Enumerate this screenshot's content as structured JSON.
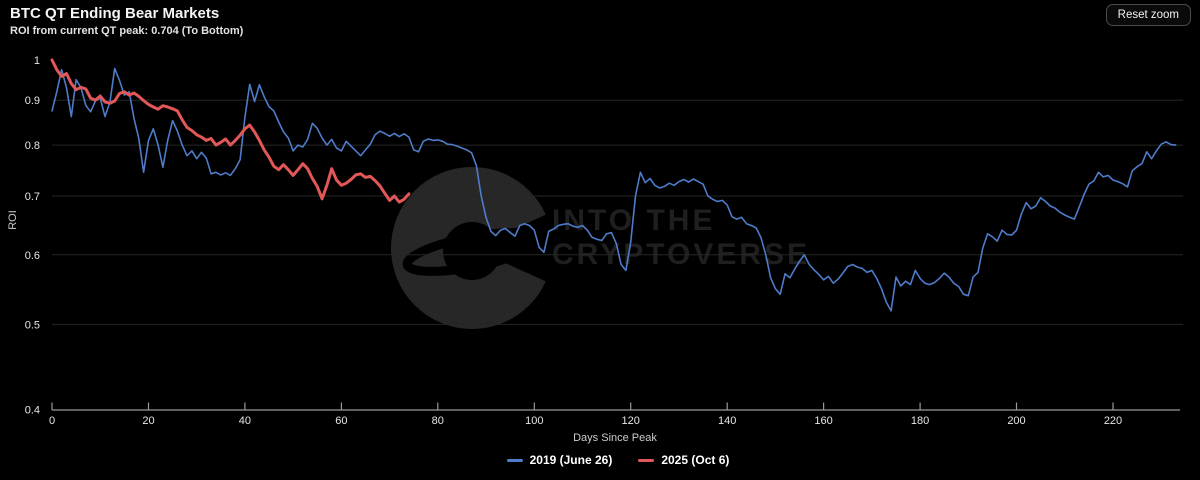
{
  "toolbar": {
    "reset_zoom_label": "Reset zoom"
  },
  "watermark": {
    "line1": "INTO THE",
    "line2": "CRYPTOVERSE"
  },
  "colors": {
    "background": "#000000",
    "grid": "#262626",
    "axis": "#999999",
    "tick_text": "#e6e6e6",
    "blue_series": "#4e7cc9",
    "red_series": "#e25757",
    "watermark_gray": "#272727"
  },
  "chart_data": {
    "type": "line",
    "title": "BTC QT Ending Bear Markets",
    "subtitle": "ROI from current QT peak: 0.704 (To Bottom)",
    "xlabel": "Days Since Peak",
    "ylabel": "ROI",
    "x_ticks": [
      0,
      20,
      40,
      60,
      80,
      100,
      120,
      140,
      160,
      180,
      200,
      220
    ],
    "y_tick_labels": [
      "1",
      "0.9",
      "0.8",
      "0.7",
      "0.6",
      "0.5",
      "0.4"
    ],
    "y_scale": "log",
    "ylim": [
      0.4,
      1.0
    ],
    "xlim": [
      0,
      234
    ],
    "grid": true,
    "legend_position": "bottom",
    "series": [
      {
        "name": "2019 (June 26)",
        "color": "#4e7cc9",
        "width": 1.6,
        "x_start": 0,
        "x_step": 1,
        "values": [
          0.875,
          0.92,
          0.975,
          0.93,
          0.862,
          0.95,
          0.93,
          0.888,
          0.873,
          0.898,
          0.905,
          0.862,
          0.895,
          0.978,
          0.948,
          0.912,
          0.92,
          0.858,
          0.814,
          0.745,
          0.81,
          0.835,
          0.8,
          0.755,
          0.81,
          0.853,
          0.83,
          0.8,
          0.778,
          0.788,
          0.772,
          0.785,
          0.773,
          0.742,
          0.745,
          0.74,
          0.744,
          0.739,
          0.752,
          0.77,
          0.86,
          0.938,
          0.897,
          0.937,
          0.908,
          0.885,
          0.875,
          0.85,
          0.828,
          0.815,
          0.788,
          0.8,
          0.796,
          0.812,
          0.847,
          0.836,
          0.815,
          0.8,
          0.812,
          0.794,
          0.788,
          0.808,
          0.798,
          0.788,
          0.778,
          0.79,
          0.802,
          0.822,
          0.83,
          0.825,
          0.819,
          0.825,
          0.818,
          0.824,
          0.817,
          0.79,
          0.786,
          0.808,
          0.813,
          0.81,
          0.811,
          0.808,
          0.802,
          0.801,
          0.798,
          0.794,
          0.79,
          0.784,
          0.758,
          0.7,
          0.662,
          0.638,
          0.631,
          0.64,
          0.643,
          0.636,
          0.63,
          0.648,
          0.651,
          0.648,
          0.64,
          0.612,
          0.604,
          0.638,
          0.642,
          0.648,
          0.65,
          0.651,
          0.647,
          0.645,
          0.648,
          0.64,
          0.628,
          0.625,
          0.623,
          0.634,
          0.636,
          0.618,
          0.585,
          0.576,
          0.62,
          0.7,
          0.745,
          0.725,
          0.733,
          0.72,
          0.715,
          0.718,
          0.724,
          0.72,
          0.727,
          0.731,
          0.726,
          0.732,
          0.727,
          0.722,
          0.7,
          0.694,
          0.69,
          0.692,
          0.684,
          0.663,
          0.659,
          0.662,
          0.651,
          0.648,
          0.644,
          0.628,
          0.6,
          0.565,
          0.549,
          0.541,
          0.571,
          0.565,
          0.578,
          0.59,
          0.6,
          0.585,
          0.577,
          0.57,
          0.562,
          0.567,
          0.557,
          0.563,
          0.572,
          0.582,
          0.585,
          0.581,
          0.579,
          0.573,
          0.576,
          0.564,
          0.549,
          0.53,
          0.518,
          0.566,
          0.553,
          0.56,
          0.555,
          0.576,
          0.564,
          0.557,
          0.555,
          0.558,
          0.564,
          0.572,
          0.566,
          0.557,
          0.552,
          0.541,
          0.539,
          0.566,
          0.573,
          0.611,
          0.634,
          0.629,
          0.622,
          0.64,
          0.633,
          0.632,
          0.64,
          0.668,
          0.688,
          0.677,
          0.682,
          0.697,
          0.69,
          0.682,
          0.678,
          0.671,
          0.666,
          0.662,
          0.659,
          0.68,
          0.703,
          0.722,
          0.728,
          0.745,
          0.736,
          0.739,
          0.73,
          0.727,
          0.723,
          0.717,
          0.748,
          0.756,
          0.762,
          0.786,
          0.772,
          0.788,
          0.802,
          0.807,
          0.801,
          0.8
        ]
      },
      {
        "name": "2025 (Oct 6)",
        "color": "#e25757",
        "width": 3,
        "x_start": 0,
        "x_step": 1,
        "values": [
          1.0,
          0.975,
          0.958,
          0.965,
          0.94,
          0.925,
          0.931,
          0.927,
          0.905,
          0.9,
          0.91,
          0.896,
          0.893,
          0.898,
          0.916,
          0.92,
          0.912,
          0.917,
          0.909,
          0.899,
          0.89,
          0.884,
          0.879,
          0.887,
          0.884,
          0.88,
          0.875,
          0.855,
          0.838,
          0.831,
          0.822,
          0.817,
          0.81,
          0.814,
          0.8,
          0.806,
          0.813,
          0.8,
          0.81,
          0.821,
          0.835,
          0.843,
          0.828,
          0.81,
          0.79,
          0.775,
          0.757,
          0.75,
          0.76,
          0.75,
          0.739,
          0.75,
          0.762,
          0.752,
          0.733,
          0.718,
          0.695,
          0.72,
          0.752,
          0.73,
          0.72,
          0.724,
          0.731,
          0.74,
          0.742,
          0.735,
          0.737,
          0.729,
          0.719,
          0.705,
          0.692,
          0.7,
          0.689,
          0.694,
          0.704
        ]
      }
    ]
  }
}
